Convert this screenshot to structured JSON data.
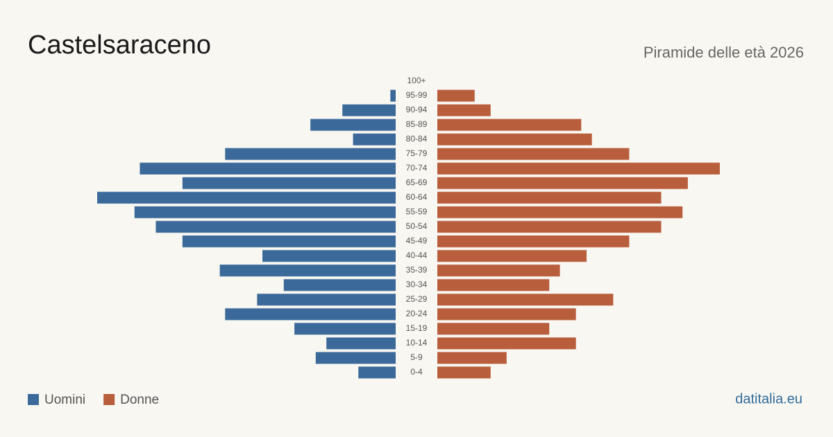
{
  "chart_data": {
    "type": "pyramid",
    "title": "Castelsaraceno",
    "subtitle": "Piramide delle età 2026",
    "source": "datitalia.eu",
    "categories": [
      "100+",
      "95-99",
      "90-94",
      "85-89",
      "80-84",
      "75-79",
      "70-74",
      "65-69",
      "60-64",
      "55-59",
      "50-54",
      "45-49",
      "40-44",
      "35-39",
      "30-34",
      "25-29",
      "20-24",
      "15-19",
      "10-14",
      "5-9",
      "0-4"
    ],
    "series": [
      {
        "name": "Uomini",
        "color": "#3b6a9a",
        "side": "left",
        "values": [
          0,
          1,
          10,
          16,
          8,
          32,
          48,
          40,
          56,
          49,
          45,
          40,
          25,
          33,
          21,
          26,
          32,
          19,
          13,
          15,
          7
        ]
      },
      {
        "name": "Donne",
        "color": "#b95e3c",
        "side": "right",
        "values": [
          0,
          7,
          10,
          27,
          29,
          36,
          53,
          47,
          42,
          46,
          42,
          36,
          28,
          23,
          21,
          33,
          26,
          21,
          26,
          13,
          10
        ]
      }
    ]
  }
}
